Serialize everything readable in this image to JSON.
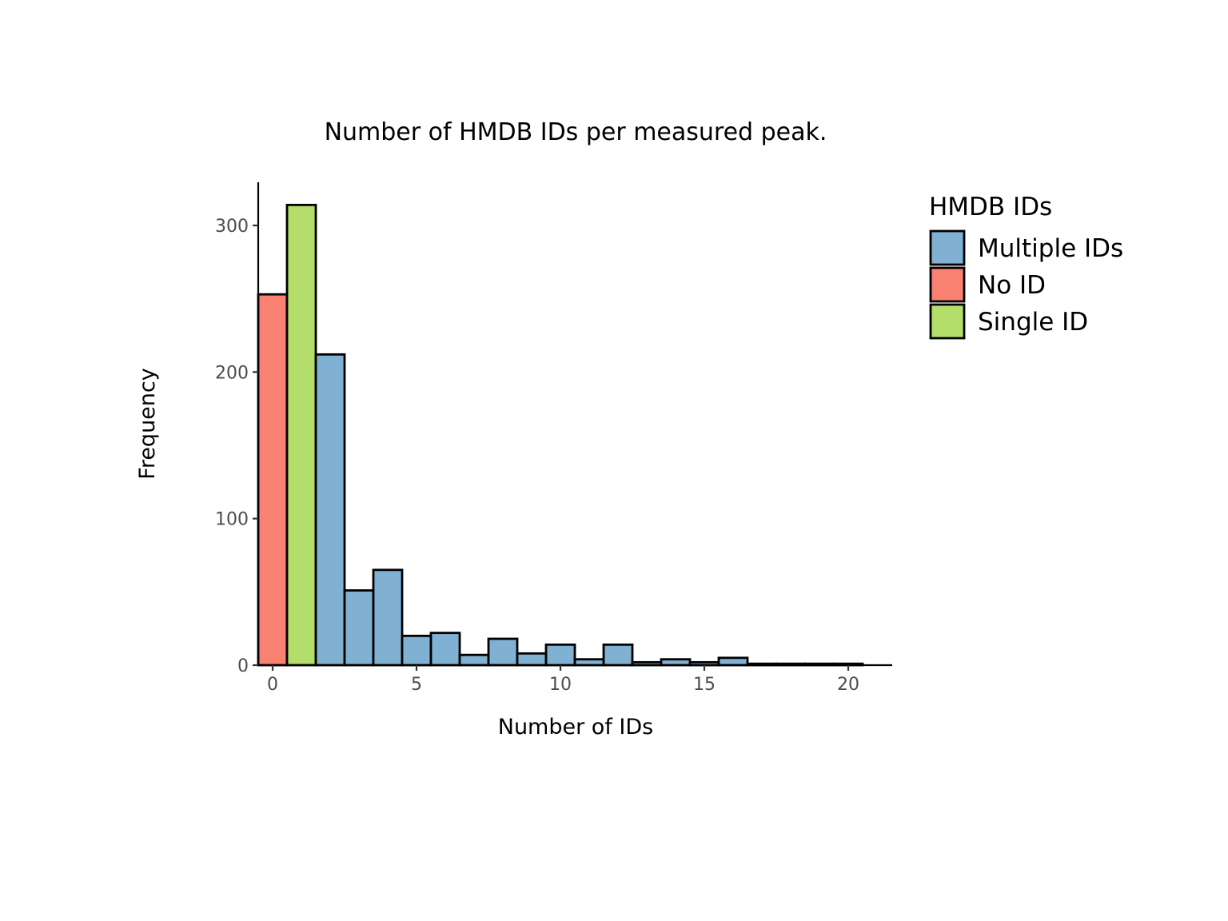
{
  "chart_data": {
    "type": "bar",
    "title": "Number of HMDB IDs per measured peak.",
    "xlabel": "Number of IDs",
    "ylabel": "Frequency",
    "xlim": [
      -0.5,
      21.5
    ],
    "ylim": [
      0,
      330
    ],
    "x_ticks": [
      0,
      5,
      10,
      15,
      20
    ],
    "x_tick_labels": [
      "0",
      "5",
      "10",
      "15",
      "20"
    ],
    "y_ticks": [
      0,
      100,
      200,
      300
    ],
    "y_tick_labels": [
      "0",
      "100",
      "200",
      "300"
    ],
    "grid": false,
    "bin_width": 1,
    "bins": [
      {
        "x": 0,
        "count": 253,
        "group": "No ID"
      },
      {
        "x": 1,
        "count": 314,
        "group": "Single ID"
      },
      {
        "x": 2,
        "count": 212,
        "group": "Multiple IDs"
      },
      {
        "x": 3,
        "count": 51,
        "group": "Multiple IDs"
      },
      {
        "x": 4,
        "count": 65,
        "group": "Multiple IDs"
      },
      {
        "x": 5,
        "count": 20,
        "group": "Multiple IDs"
      },
      {
        "x": 6,
        "count": 22,
        "group": "Multiple IDs"
      },
      {
        "x": 7,
        "count": 7,
        "group": "Multiple IDs"
      },
      {
        "x": 8,
        "count": 18,
        "group": "Multiple IDs"
      },
      {
        "x": 9,
        "count": 8,
        "group": "Multiple IDs"
      },
      {
        "x": 10,
        "count": 14,
        "group": "Multiple IDs"
      },
      {
        "x": 11,
        "count": 4,
        "group": "Multiple IDs"
      },
      {
        "x": 12,
        "count": 14,
        "group": "Multiple IDs"
      },
      {
        "x": 13,
        "count": 2,
        "group": "Multiple IDs"
      },
      {
        "x": 14,
        "count": 4,
        "group": "Multiple IDs"
      },
      {
        "x": 15,
        "count": 2,
        "group": "Multiple IDs"
      },
      {
        "x": 16,
        "count": 5,
        "group": "Multiple IDs"
      },
      {
        "x": 17,
        "count": 1,
        "group": "Multiple IDs"
      },
      {
        "x": 18,
        "count": 1,
        "group": "Multiple IDs"
      },
      {
        "x": 19,
        "count": 1,
        "group": "Multiple IDs"
      },
      {
        "x": 20,
        "count": 1,
        "group": "Multiple IDs"
      }
    ],
    "legend": {
      "title": "HMDB IDs",
      "position": "right",
      "entries": [
        {
          "name": "Multiple IDs",
          "color": "#80b1d3"
        },
        {
          "name": "No ID",
          "color": "#fa8072"
        },
        {
          "name": "Single ID",
          "color": "#b3de69"
        }
      ]
    }
  }
}
